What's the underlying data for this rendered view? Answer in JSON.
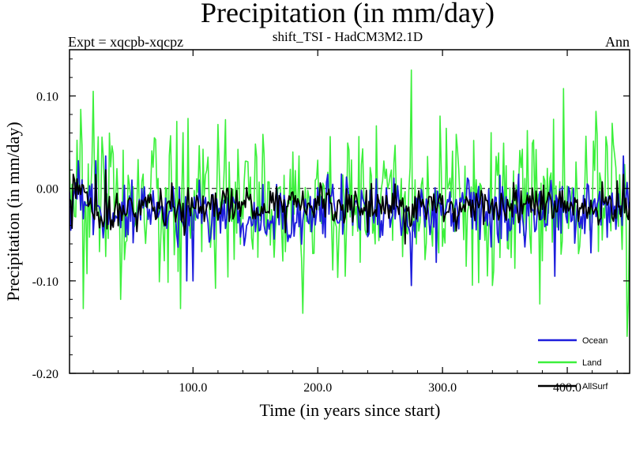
{
  "chart_data": {
    "type": "line",
    "title": "Precipitation (in mm/day)",
    "subtitle_left": "Expt = xqcpb-xqcpz",
    "subtitle_center": "shift_TSI - HadCM3M2.1D",
    "subtitle_right": "Ann",
    "xlabel": "Time (in years since start)",
    "ylabel": "Precipitation (in mm/day)",
    "xlim": [
      1,
      450
    ],
    "ylim": [
      -0.2,
      0.15
    ],
    "xticks": [
      100,
      200,
      300,
      400
    ],
    "xtick_labels": [
      "100.0",
      "200.0",
      "300.0",
      "400.0"
    ],
    "yticks": [
      0.1,
      0.0,
      -0.1,
      -0.2
    ],
    "ytick_labels": [
      "0.10",
      "0.00",
      "-0.10",
      "-0.20"
    ],
    "zero_line": true,
    "grid": false,
    "legend_position": "bottom-right",
    "series": [
      {
        "name": "Ocean",
        "color": "#1d1ddc",
        "mean": -0.025,
        "amplitude": 0.028,
        "highlights": [
          [
            8,
            0.03
          ],
          [
            22,
            0.03
          ],
          [
            30,
            0.035
          ],
          [
            48,
            -0.05
          ],
          [
            95,
            -0.1
          ],
          [
            100,
            -0.1
          ],
          [
            275,
            -0.105
          ],
          [
            295,
            -0.08
          ],
          [
            390,
            -0.095
          ],
          [
            445,
            0.035
          ]
        ]
      },
      {
        "name": "Land",
        "color": "#3cf03c",
        "mean": -0.015,
        "amplitude": 0.07,
        "highlights": [
          [
            20,
            0.105
          ],
          [
            12,
            -0.13
          ],
          [
            42,
            -0.12
          ],
          [
            90,
            -0.13
          ],
          [
            188,
            -0.135
          ],
          [
            275,
            0.128
          ],
          [
            340,
            -0.105
          ],
          [
            378,
            -0.125
          ],
          [
            397,
            0.108
          ],
          [
            448,
            -0.16
          ]
        ]
      },
      {
        "name": "AllSurf",
        "color": "#000000",
        "mean": -0.02,
        "amplitude": 0.018,
        "highlights": [
          [
            22,
            0.015
          ],
          [
            30,
            0.02
          ],
          [
            270,
            -0.06
          ],
          [
            445,
            0.015
          ]
        ]
      }
    ]
  }
}
